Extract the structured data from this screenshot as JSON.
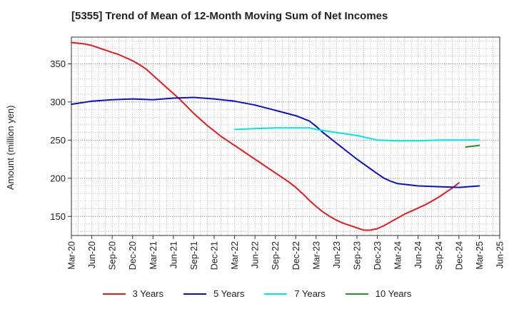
{
  "title": "[5355]  Trend of Mean of 12-Month Moving Sum of Net Incomes",
  "chart_data": {
    "type": "line",
    "title": "[5355]  Trend of Mean of 12-Month Moving Sum of Net Incomes",
    "xlabel": "",
    "ylabel": "Amount (million yen)",
    "ylim": [
      125,
      385
    ],
    "yticks": [
      150,
      200,
      250,
      300,
      350
    ],
    "xticks": [
      "Mar-20",
      "Jun-20",
      "Sep-20",
      "Dec-20",
      "Mar-21",
      "Jun-21",
      "Sep-21",
      "Dec-21",
      "Mar-22",
      "Jun-22",
      "Sep-22",
      "Dec-22",
      "Mar-23",
      "Jun-23",
      "Sep-23",
      "Dec-23",
      "Mar-24",
      "Jun-24",
      "Sep-24",
      "Dec-24",
      "Mar-25",
      "Jun-25"
    ],
    "grid": true,
    "legend_position": "bottom",
    "series": [
      {
        "name": "3 Years",
        "color": "#e41a1c",
        "points": [
          [
            "Mar-20",
            378
          ],
          [
            "Apr-20",
            377
          ],
          [
            "May-20",
            376
          ],
          [
            "Jun-20",
            374
          ],
          [
            "Jul-20",
            371
          ],
          [
            "Aug-20",
            368
          ],
          [
            "Sep-20",
            365
          ],
          [
            "Oct-20",
            362
          ],
          [
            "Nov-20",
            358
          ],
          [
            "Dec-20",
            354
          ],
          [
            "Jan-21",
            349
          ],
          [
            "Feb-21",
            343
          ],
          [
            "Mar-21",
            335
          ],
          [
            "Apr-21",
            327
          ],
          [
            "May-21",
            319
          ],
          [
            "Jun-21",
            311
          ],
          [
            "Jul-21",
            303
          ],
          [
            "Aug-21",
            294
          ],
          [
            "Sep-21",
            285
          ],
          [
            "Oct-21",
            277
          ],
          [
            "Nov-21",
            269
          ],
          [
            "Dec-21",
            262
          ],
          [
            "Jan-22",
            255
          ],
          [
            "Feb-22",
            249
          ],
          [
            "Mar-22",
            243
          ],
          [
            "Apr-22",
            237
          ],
          [
            "May-22",
            231
          ],
          [
            "Jun-22",
            225
          ],
          [
            "Jul-22",
            219
          ],
          [
            "Aug-22",
            213
          ],
          [
            "Sep-22",
            207
          ],
          [
            "Oct-22",
            201
          ],
          [
            "Nov-22",
            195
          ],
          [
            "Dec-22",
            188
          ],
          [
            "Jan-23",
            180
          ],
          [
            "Feb-23",
            171
          ],
          [
            "Mar-23",
            163
          ],
          [
            "Apr-23",
            156
          ],
          [
            "May-23",
            150
          ],
          [
            "Jun-23",
            145
          ],
          [
            "Jul-23",
            141
          ],
          [
            "Aug-23",
            138
          ],
          [
            "Sep-23",
            135
          ],
          [
            "Oct-23",
            132
          ],
          [
            "Nov-23",
            132
          ],
          [
            "Dec-23",
            134
          ],
          [
            "Jan-24",
            138
          ],
          [
            "Feb-24",
            143
          ],
          [
            "Mar-24",
            148
          ],
          [
            "Apr-24",
            153
          ],
          [
            "May-24",
            157
          ],
          [
            "Jun-24",
            161
          ],
          [
            "Jul-24",
            165
          ],
          [
            "Aug-24",
            170
          ],
          [
            "Sep-24",
            175
          ],
          [
            "Oct-24",
            181
          ],
          [
            "Nov-24",
            187
          ],
          [
            "Dec-24",
            194
          ]
        ]
      },
      {
        "name": "5 Years",
        "color": "#0a12c8",
        "points": [
          [
            "Mar-20",
            297
          ],
          [
            "Jun-20",
            301
          ],
          [
            "Sep-20",
            303
          ],
          [
            "Dec-20",
            304
          ],
          [
            "Mar-21",
            303
          ],
          [
            "Jun-21",
            305
          ],
          [
            "Sep-21",
            306
          ],
          [
            "Dec-21",
            304
          ],
          [
            "Mar-22",
            301
          ],
          [
            "Jun-22",
            296
          ],
          [
            "Sep-22",
            289
          ],
          [
            "Dec-22",
            282
          ],
          [
            "Feb-23",
            275
          ],
          [
            "Mar-23",
            268
          ],
          [
            "Apr-23",
            260
          ],
          [
            "Jun-23",
            246
          ],
          [
            "Sep-23",
            225
          ],
          [
            "Dec-23",
            206
          ],
          [
            "Jan-24",
            200
          ],
          [
            "Feb-24",
            196
          ],
          [
            "Mar-24",
            193
          ],
          [
            "Jun-24",
            190
          ],
          [
            "Sep-24",
            189
          ],
          [
            "Dec-24",
            188
          ],
          [
            "Mar-25",
            190
          ]
        ]
      },
      {
        "name": "7 Years",
        "color": "#00e5e5",
        "points": [
          [
            "Mar-22",
            264
          ],
          [
            "Jun-22",
            265
          ],
          [
            "Sep-22",
            266
          ],
          [
            "Dec-22",
            266
          ],
          [
            "Feb-23",
            266
          ],
          [
            "Mar-23",
            264
          ],
          [
            "Jun-23",
            260
          ],
          [
            "Sep-23",
            256
          ],
          [
            "Dec-23",
            250
          ],
          [
            "Mar-24",
            249
          ],
          [
            "Jun-24",
            249
          ],
          [
            "Sep-24",
            250
          ],
          [
            "Dec-24",
            250
          ],
          [
            "Mar-25",
            250
          ]
        ]
      },
      {
        "name": "10 Years",
        "color": "#2e8b2e",
        "points": [
          [
            "Jan-25",
            241
          ],
          [
            "Mar-25",
            243
          ]
        ]
      }
    ]
  }
}
